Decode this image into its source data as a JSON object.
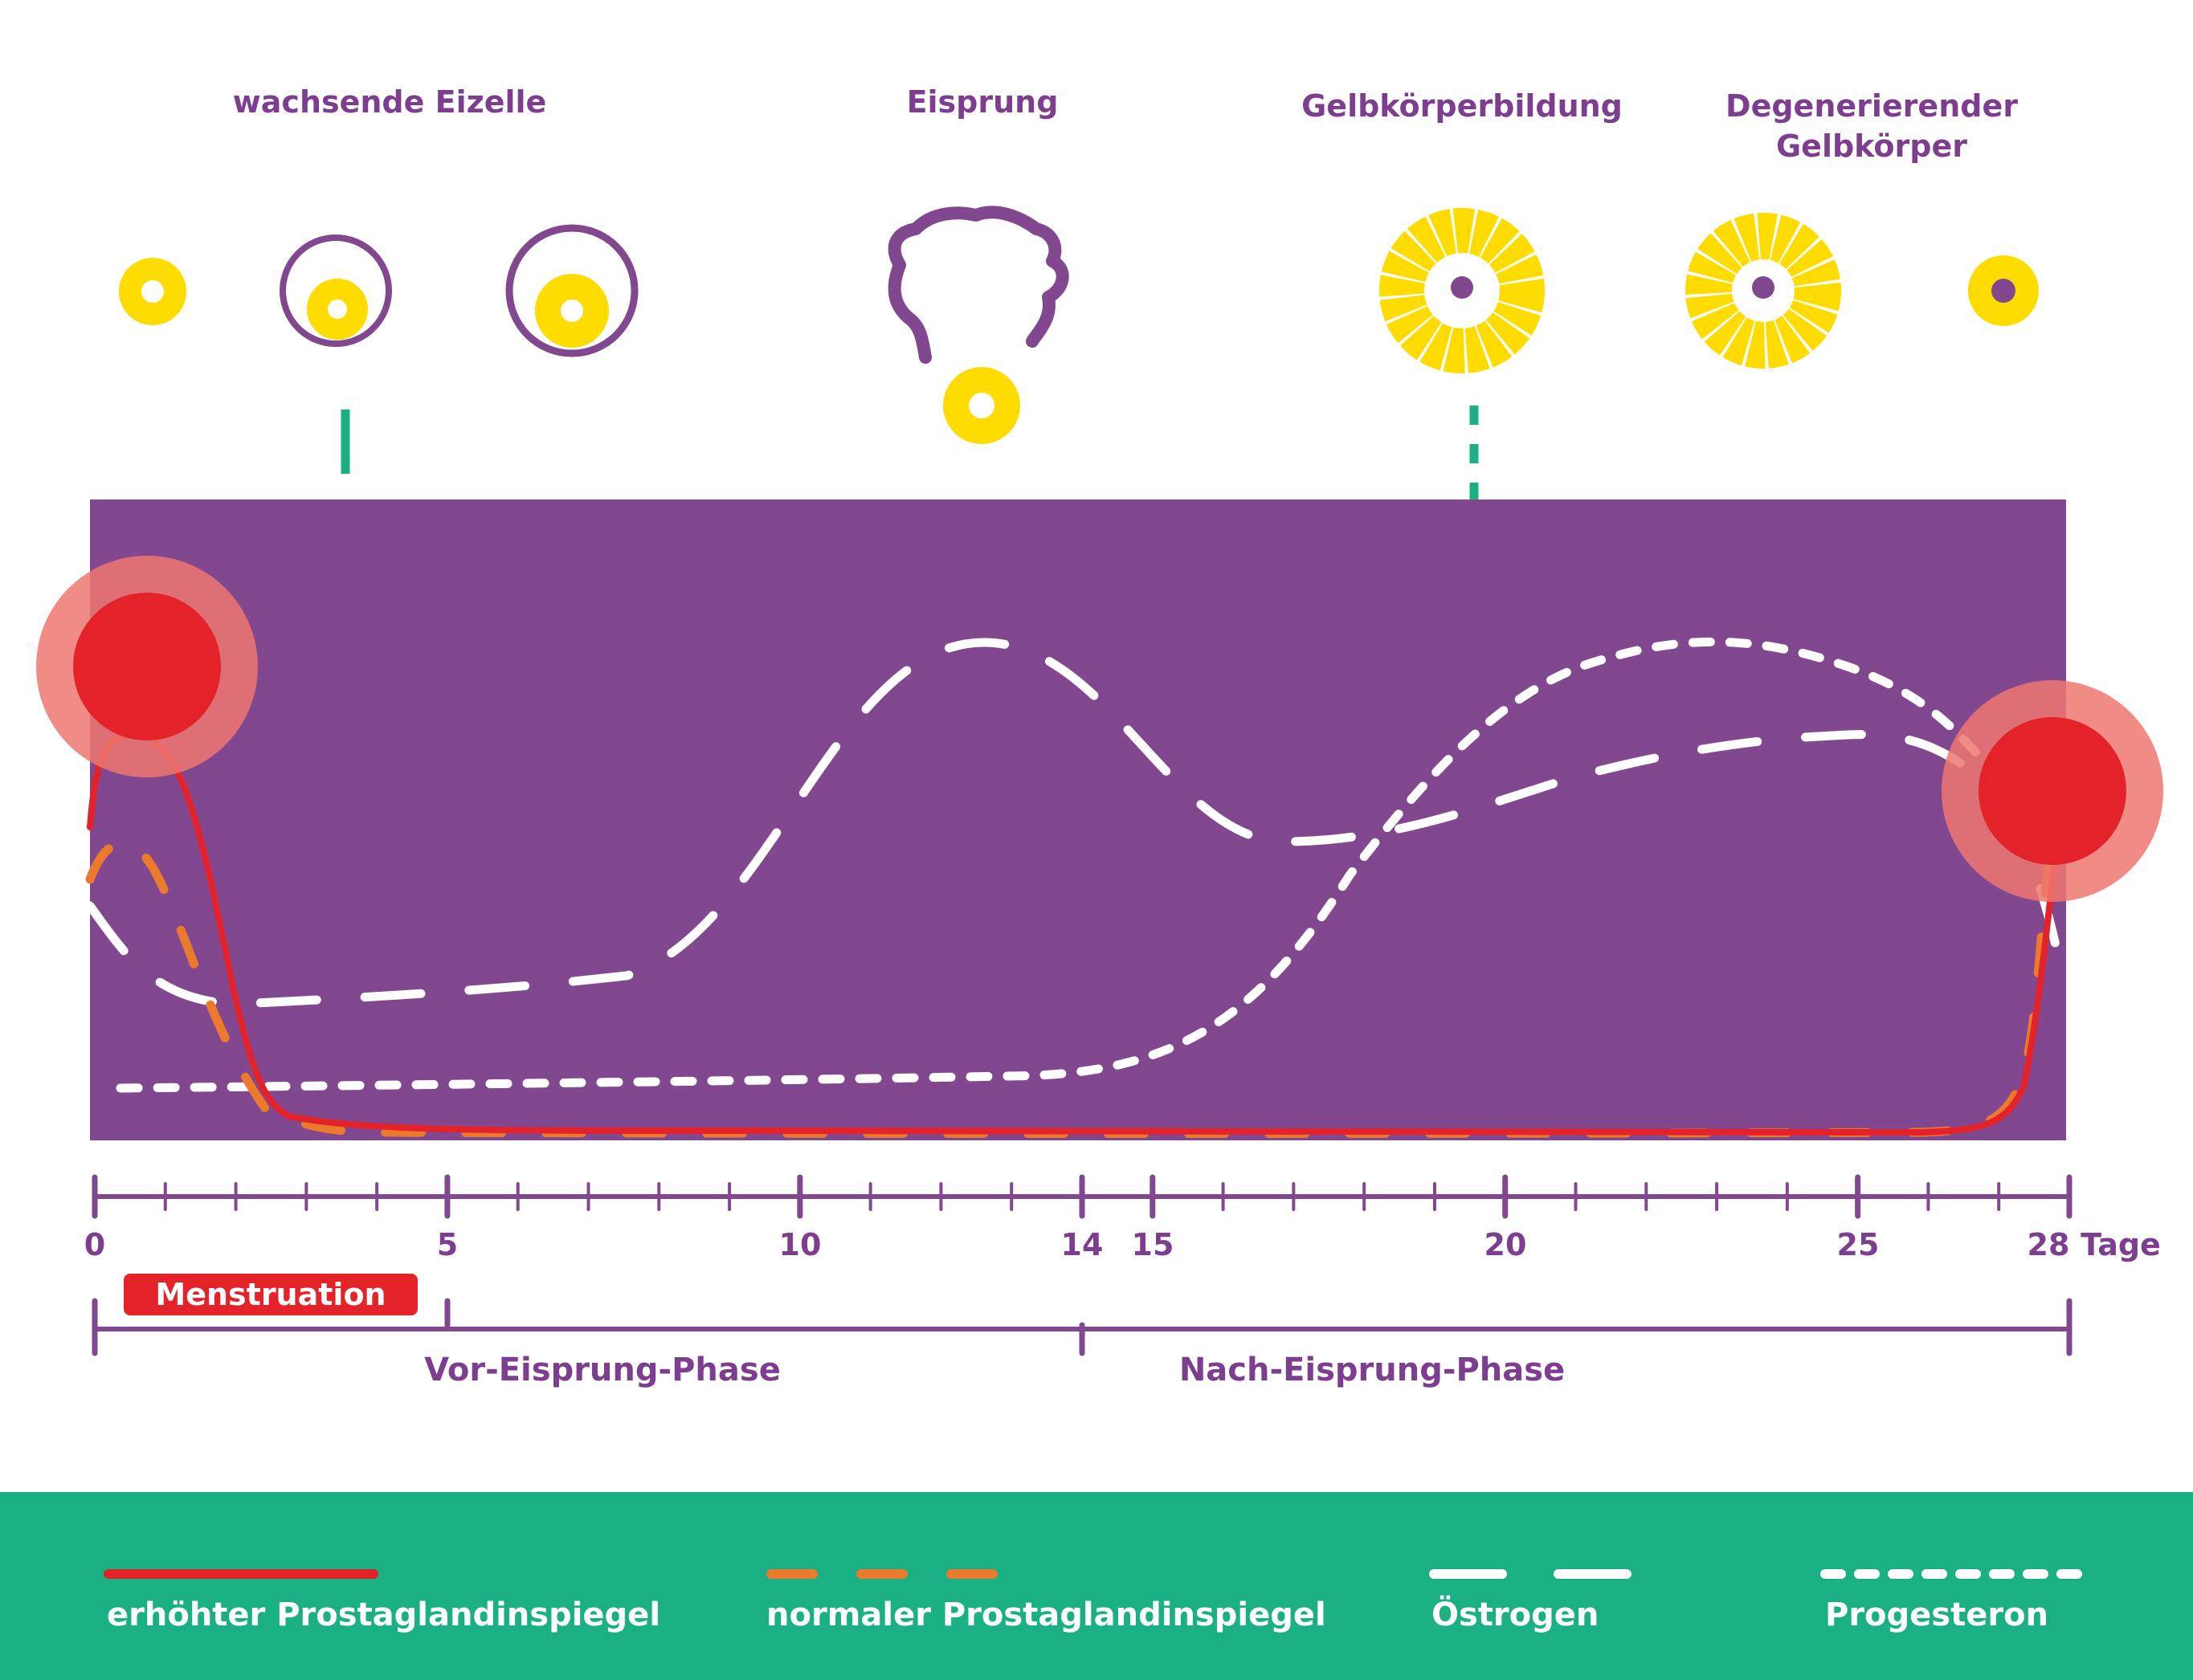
{
  "stages": {
    "growing": "wachsende Eizelle",
    "ovulation": "Eisprung",
    "corpus_luteum": "Gelbkörperbildung",
    "degenerating_line1": "Degenerierender",
    "degenerating_line2": "Gelbkörper"
  },
  "axis": {
    "ticks": [
      "0",
      "5",
      "10",
      "14",
      "15",
      "20",
      "25",
      "28"
    ],
    "unit": "Tage"
  },
  "menstruation": "Menstruation",
  "phases": {
    "pre": "Vor-Eisprung-Phase",
    "post": "Nach-Eisprung-Phase"
  },
  "legend": {
    "high_prostaglandin": "erhöhter Prostaglandinspiegel",
    "normal_prostaglandin": "normaler Prostaglandinspiegel",
    "estrogen": "Östrogen",
    "progesterone": "Progesteron"
  },
  "colors": {
    "purple": "#82488f",
    "text_purple": "#7e3e8f",
    "yellow": "#ffdc00",
    "red": "#e42229",
    "orange": "#ec7a2c",
    "green": "#1ab084",
    "white": "#ffffff"
  }
}
